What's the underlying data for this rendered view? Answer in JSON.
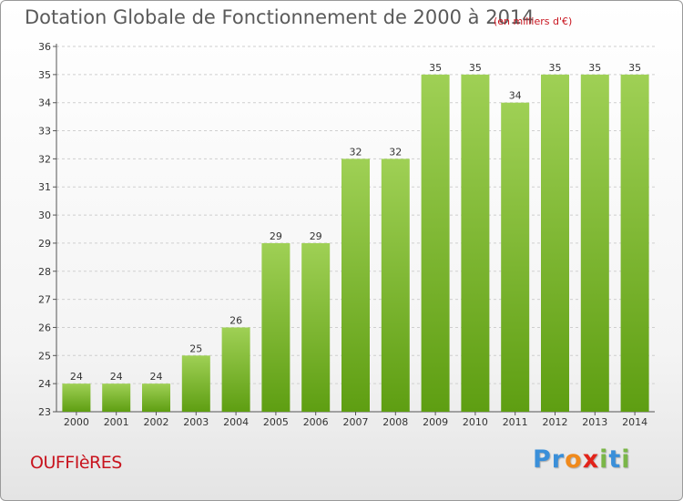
{
  "header": {
    "title": "Dotation Globale de Fonctionnement de 2000 à 2014",
    "unit_note": "(en milliers d'€)"
  },
  "footer": {
    "commune": "OUFFIèRES",
    "logo_letters": [
      "P",
      "r",
      "o",
      "x",
      "i",
      "t",
      "i"
    ],
    "logo_colors": [
      "#3a8fd9",
      "#3a8fd9",
      "#f08a1c",
      "#e2231a",
      "#7ab648",
      "#3a8fd9",
      "#7ab648"
    ]
  },
  "colors": {
    "bar_top": "#9fd055",
    "bar_bottom": "#5e9e12",
    "axis": "#555555",
    "grid": "#cfcfcf",
    "label": "#333333"
  },
  "chart_data": {
    "type": "bar",
    "title": "Dotation Globale de Fonctionnement de 2000 à 2014",
    "xlabel": "",
    "ylabel": "",
    "categories": [
      "2000",
      "2001",
      "2002",
      "2003",
      "2004",
      "2005",
      "2006",
      "2007",
      "2008",
      "2009",
      "2010",
      "2011",
      "2012",
      "2013",
      "2014"
    ],
    "values": [
      24,
      24,
      24,
      25,
      26,
      29,
      29,
      32,
      32,
      35,
      35,
      34,
      35,
      35,
      35
    ],
    "ylim": [
      23,
      36
    ],
    "yticks": [
      23,
      24,
      25,
      26,
      27,
      28,
      29,
      30,
      31,
      32,
      33,
      34,
      35,
      36
    ],
    "grid": true,
    "legend": "none"
  }
}
